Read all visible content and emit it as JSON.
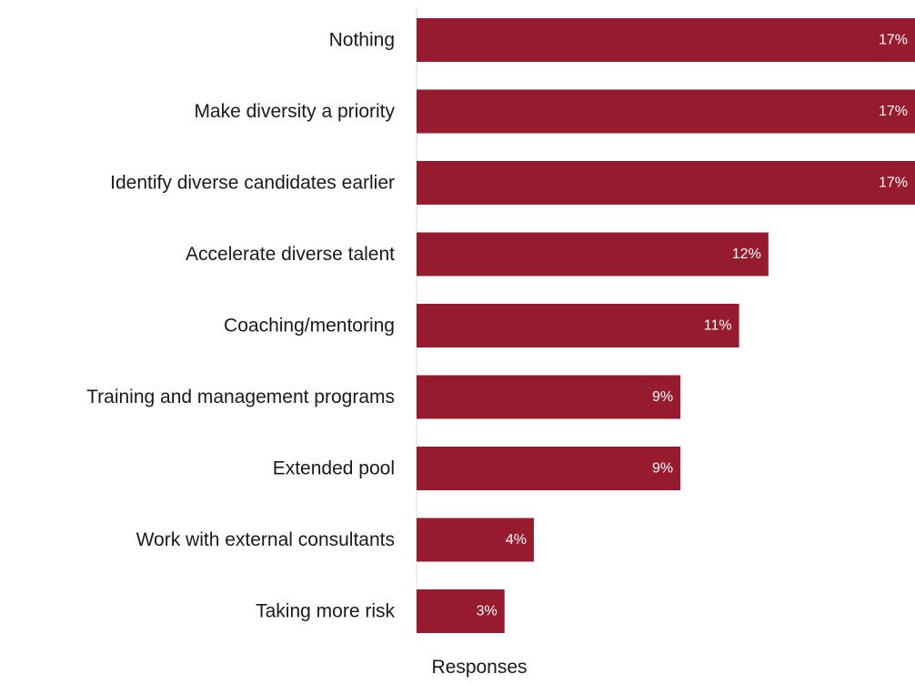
{
  "chart_data": {
    "type": "bar",
    "orientation": "horizontal",
    "categories": [
      "Nothing",
      "Make diversity a priority",
      "Identify diverse candidates earlier",
      "Accelerate diverse talent",
      "Coaching/mentoring",
      "Training and management programs",
      "Extended pool",
      "Work with external consultants",
      "Taking more risk"
    ],
    "values": [
      17,
      17,
      17,
      12,
      11,
      9,
      9,
      4,
      3
    ],
    "data_labels": [
      "17%",
      "17%",
      "17%",
      "12%",
      "11%",
      "9%",
      "9%",
      "4%",
      "3%"
    ],
    "title": "",
    "xlabel": "Responses",
    "ylabel": "",
    "xlim": [
      0,
      17
    ],
    "grid": false,
    "legend": "none",
    "bar_color": "#971b2f",
    "label_color": "#ffffff",
    "axis_color": "#d9d9d9"
  }
}
